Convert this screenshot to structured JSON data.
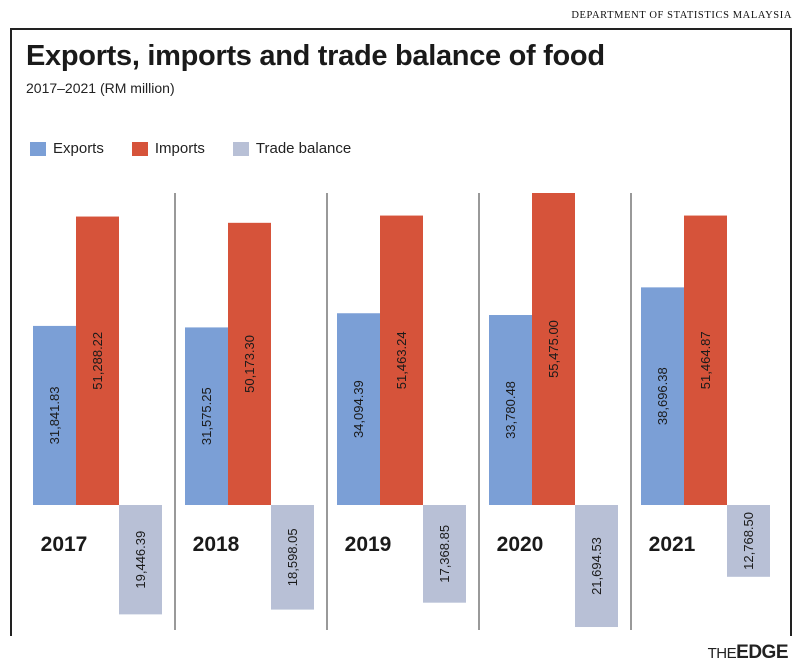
{
  "source": "DEPARTMENT OF STATISTICS MALAYSIA",
  "logo": {
    "the": "THE",
    "edge": "EDGE"
  },
  "colors": {
    "exports": "#7b9fd6",
    "imports": "#d6533a",
    "trade_balance": "#b8c0d6"
  },
  "chart_data": {
    "type": "bar",
    "title": "Exports, imports and trade balance of food",
    "subtitle": "2017–2021 (RM million)",
    "categories": [
      "2017",
      "2018",
      "2019",
      "2020",
      "2021"
    ],
    "series": [
      {
        "name": "Exports",
        "values": [
          31841.83,
          31575.25,
          34094.39,
          33780.48,
          38696.38
        ],
        "labels": [
          "31,841.83",
          "31,575.25",
          "34,094.39",
          "33,780.48",
          "38,696.38"
        ]
      },
      {
        "name": "Imports",
        "values": [
          51288.22,
          50173.3,
          51463.24,
          55475.0,
          51464.87
        ],
        "labels": [
          "51,288.22",
          "50,173.30",
          "51,463.24",
          "55,475.00",
          "51,464.87"
        ]
      },
      {
        "name": "Trade balance",
        "values": [
          -19446.39,
          -18598.05,
          -17368.85,
          -21694.53,
          -12768.5
        ],
        "labels": [
          "19,446.39",
          "18,598.05",
          "17,368.85",
          "21,694.53",
          "12,768.50"
        ]
      }
    ],
    "xlabel": "",
    "ylabel": "",
    "ylim": [
      -22000,
      56000
    ],
    "grid": false,
    "legend": "top-left"
  }
}
